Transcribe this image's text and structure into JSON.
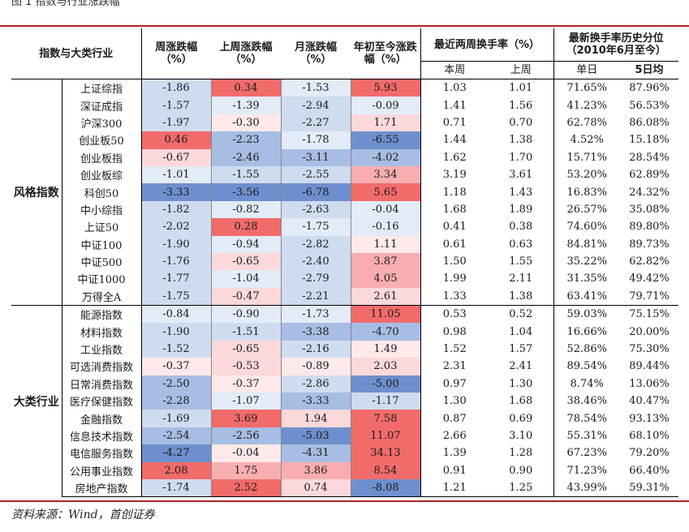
{
  "figure_title": "图 1 指数与行业涨跌幅",
  "source": "资料来源：Wind，首创证券",
  "headers": {
    "col_name": "指数与大类行业",
    "col_week": "周涨跌幅（%）",
    "col_lastweek": "上周涨跌幅（%）",
    "col_month": "月涨跌幅（%）",
    "col_ytd": "年初至今涨跌幅（%）",
    "col_turnover": "最近两周换手率（%）",
    "col_percentile": "最新换手率历史分位（2010年6月至今）",
    "sub_thisweek": "本周",
    "sub_lastweek": "上周",
    "sub_singleweek": "单日",
    "sub_5day": "5日均"
  },
  "colors": {
    "strong_red": "#f26b6b",
    "mid_red": "#f8aeb0",
    "light_red": "#fbd8da",
    "pale_red": "#fde9ea",
    "strong_blue": "#6e8fcd",
    "mid_blue": "#a7bde3",
    "light_blue": "#cfdcf0",
    "pale_blue": "#e3ebf6"
  },
  "groups": [
    {
      "label": "风格指数",
      "rows": [
        {
          "name": "上证综指",
          "week": "-1.86",
          "lastweek": "0.34",
          "month": "-1.53",
          "ytd": "5.93",
          "tw": "1.03",
          "lw": "1.01",
          "day": "71.65%",
          "d5": "87.96%"
        },
        {
          "name": "深证成指",
          "week": "-1.57",
          "lastweek": "-1.39",
          "month": "-2.94",
          "ytd": "-0.09",
          "tw": "1.41",
          "lw": "1.56",
          "day": "41.23%",
          "d5": "56.53%"
        },
        {
          "name": "沪深300",
          "week": "-1.97",
          "lastweek": "-0.30",
          "month": "-2.27",
          "ytd": "1.71",
          "tw": "0.71",
          "lw": "0.70",
          "day": "62.78%",
          "d5": "86.08%"
        },
        {
          "name": "创业板50",
          "week": "0.46",
          "lastweek": "-2.23",
          "month": "-1.78",
          "ytd": "-6.55",
          "tw": "1.44",
          "lw": "1.38",
          "day": "4.52%",
          "d5": "15.18%"
        },
        {
          "name": "创业板指",
          "week": "-0.67",
          "lastweek": "-2.46",
          "month": "-3.11",
          "ytd": "-4.02",
          "tw": "1.62",
          "lw": "1.70",
          "day": "15.71%",
          "d5": "28.54%"
        },
        {
          "name": "创业板综",
          "week": "-1.01",
          "lastweek": "-1.55",
          "month": "-2.55",
          "ytd": "3.34",
          "tw": "3.19",
          "lw": "3.61",
          "day": "53.20%",
          "d5": "62.89%"
        },
        {
          "name": "科创50",
          "week": "-3.33",
          "lastweek": "-3.56",
          "month": "-6.78",
          "ytd": "5.65",
          "tw": "1.18",
          "lw": "1.43",
          "day": "16.83%",
          "d5": "24.32%"
        },
        {
          "name": "中小综指",
          "week": "-1.82",
          "lastweek": "-0.82",
          "month": "-2.63",
          "ytd": "-0.04",
          "tw": "1.68",
          "lw": "1.89",
          "day": "26.57%",
          "d5": "35.08%"
        },
        {
          "name": "上证50",
          "week": "-2.02",
          "lastweek": "0.28",
          "month": "-1.75",
          "ytd": "-0.16",
          "tw": "0.41",
          "lw": "0.38",
          "day": "74.60%",
          "d5": "89.80%"
        },
        {
          "name": "中证100",
          "week": "-1.90",
          "lastweek": "-0.94",
          "month": "-2.82",
          "ytd": "1.11",
          "tw": "0.61",
          "lw": "0.63",
          "day": "84.81%",
          "d5": "89.73%"
        },
        {
          "name": "中证500",
          "week": "-1.76",
          "lastweek": "-0.65",
          "month": "-2.40",
          "ytd": "3.87",
          "tw": "1.50",
          "lw": "1.55",
          "day": "35.22%",
          "d5": "62.82%"
        },
        {
          "name": "中证1000",
          "week": "-1.77",
          "lastweek": "-1.04",
          "month": "-2.79",
          "ytd": "4.05",
          "tw": "1.99",
          "lw": "2.11",
          "day": "31.35%",
          "d5": "49.42%"
        },
        {
          "name": "万得全A",
          "week": "-1.75",
          "lastweek": "-0.47",
          "month": "-2.21",
          "ytd": "2.61",
          "tw": "1.33",
          "lw": "1.38",
          "day": "63.41%",
          "d5": "79.71%"
        }
      ]
    },
    {
      "label": "大类行业",
      "rows": [
        {
          "name": "能源指数",
          "week": "-0.84",
          "lastweek": "-0.90",
          "month": "-1.73",
          "ytd": "11.05",
          "tw": "0.53",
          "lw": "0.52",
          "day": "59.03%",
          "d5": "75.15%"
        },
        {
          "name": "材料指数",
          "week": "-1.90",
          "lastweek": "-1.51",
          "month": "-3.38",
          "ytd": "-4.70",
          "tw": "0.98",
          "lw": "1.04",
          "day": "16.66%",
          "d5": "20.00%"
        },
        {
          "name": "工业指数",
          "week": "-1.52",
          "lastweek": "-0.65",
          "month": "-2.16",
          "ytd": "1.49",
          "tw": "1.52",
          "lw": "1.57",
          "day": "52.86%",
          "d5": "75.30%"
        },
        {
          "name": "可选消费指数",
          "week": "-0.37",
          "lastweek": "-0.53",
          "month": "-0.89",
          "ytd": "2.03",
          "tw": "2.31",
          "lw": "2.41",
          "day": "89.54%",
          "d5": "89.44%"
        },
        {
          "name": "日常消费指数",
          "week": "-2.50",
          "lastweek": "-0.37",
          "month": "-2.86",
          "ytd": "-5.00",
          "tw": "0.97",
          "lw": "1.30",
          "day": "8.74%",
          "d5": "13.06%"
        },
        {
          "name": "医疗保健指数",
          "week": "-2.28",
          "lastweek": "-1.07",
          "month": "-3.33",
          "ytd": "-1.17",
          "tw": "1.30",
          "lw": "1.68",
          "day": "38.46%",
          "d5": "40.47%"
        },
        {
          "name": "金融指数",
          "week": "-1.69",
          "lastweek": "3.69",
          "month": "1.94",
          "ytd": "7.58",
          "tw": "0.87",
          "lw": "0.69",
          "day": "78.54%",
          "d5": "93.13%"
        },
        {
          "name": "信息技术指数",
          "week": "-2.54",
          "lastweek": "-2.56",
          "month": "-5.03",
          "ytd": "11.07",
          "tw": "2.66",
          "lw": "3.10",
          "day": "55.31%",
          "d5": "68.10%"
        },
        {
          "name": "电信服务指数",
          "week": "-4.27",
          "lastweek": "-0.04",
          "month": "-4.31",
          "ytd": "34.13",
          "tw": "1.39",
          "lw": "1.28",
          "day": "67.23%",
          "d5": "79.20%"
        },
        {
          "name": "公用事业指数",
          "week": "2.08",
          "lastweek": "1.75",
          "month": "3.86",
          "ytd": "8.54",
          "tw": "0.91",
          "lw": "0.90",
          "day": "71.23%",
          "d5": "66.40%"
        },
        {
          "name": "房地产指数",
          "week": "-1.74",
          "lastweek": "2.52",
          "month": "0.74",
          "ytd": "-8.08",
          "tw": "1.21",
          "lw": "1.25",
          "day": "43.99%",
          "d5": "59.31%"
        }
      ]
    }
  ]
}
